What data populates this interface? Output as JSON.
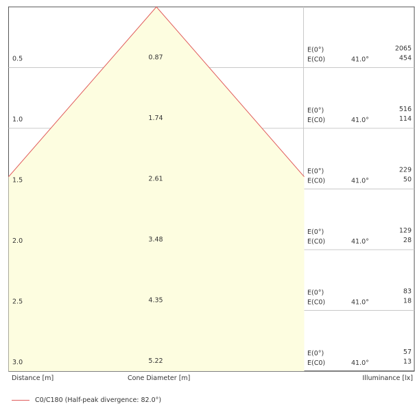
{
  "chart_data": {
    "type": "area",
    "title": "",
    "angle_label": "41.0°",
    "rows": [
      {
        "distance": "0.5",
        "diameter": "0.87",
        "e0": "2065",
        "ec0": "454"
      },
      {
        "distance": "1.0",
        "diameter": "1.74",
        "e0": "516",
        "ec0": "114"
      },
      {
        "distance": "1.5",
        "diameter": "2.61",
        "e0": "229",
        "ec0": "50"
      },
      {
        "distance": "2.0",
        "diameter": "3.48",
        "e0": "129",
        "ec0": "28"
      },
      {
        "distance": "2.5",
        "diameter": "4.35",
        "e0": "83",
        "ec0": "18"
      },
      {
        "distance": "3.0",
        "diameter": "5.22",
        "e0": "57",
        "ec0": "13"
      }
    ],
    "e0_label": "E(0°)",
    "ec0_label": "E(C0)",
    "xlabel": "Distance [m]",
    "cone_label": "Cone Diameter [m]",
    "illuminance_label": "Illuminance [lx]",
    "legend": "C0/C180 (Half-peak divergence: 82.0°)",
    "fill_color": "#fdfde0",
    "line_color": "#e05a5a",
    "grid_color": "#c8c8c8"
  }
}
